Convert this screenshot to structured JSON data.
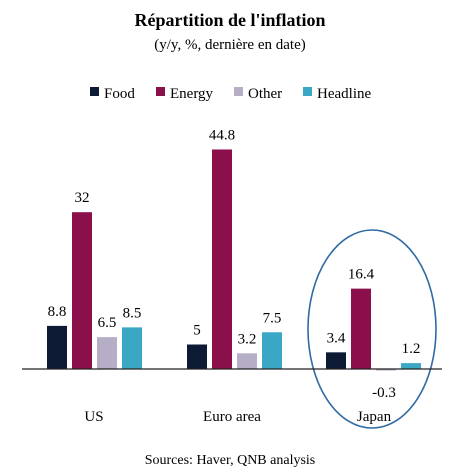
{
  "chart_data": {
    "type": "bar",
    "title": "Répartition de l'inflation",
    "subtitle": "(y/y, %, dernière en date)",
    "categories": [
      "US",
      "Euro area",
      "Japan"
    ],
    "series": [
      {
        "name": "Food",
        "color": "#0d1a33",
        "values": [
          8.8,
          5,
          3.4
        ]
      },
      {
        "name": "Energy",
        "color": "#8b0f4b",
        "values": [
          32,
          44.8,
          16.4
        ]
      },
      {
        "name": "Other",
        "color": "#b6adc6",
        "values": [
          6.5,
          3.2,
          -0.3
        ]
      },
      {
        "name": "Headline",
        "color": "#3aa7c5",
        "values": [
          8.5,
          7.5,
          1.2
        ]
      }
    ],
    "value_labels": [
      [
        "8.8",
        "5",
        "3.4"
      ],
      [
        "32",
        "44.8",
        "16.4"
      ],
      [
        "6.5",
        "3.2",
        "-0.3"
      ],
      [
        "8.5",
        "7.5",
        "1.2"
      ]
    ],
    "highlight": {
      "category": "Japan",
      "shape": "ellipse",
      "color": "#2e6aa3"
    },
    "legend_position": "top",
    "grid": false,
    "source": "Sources: Haver, QNB analysis"
  }
}
